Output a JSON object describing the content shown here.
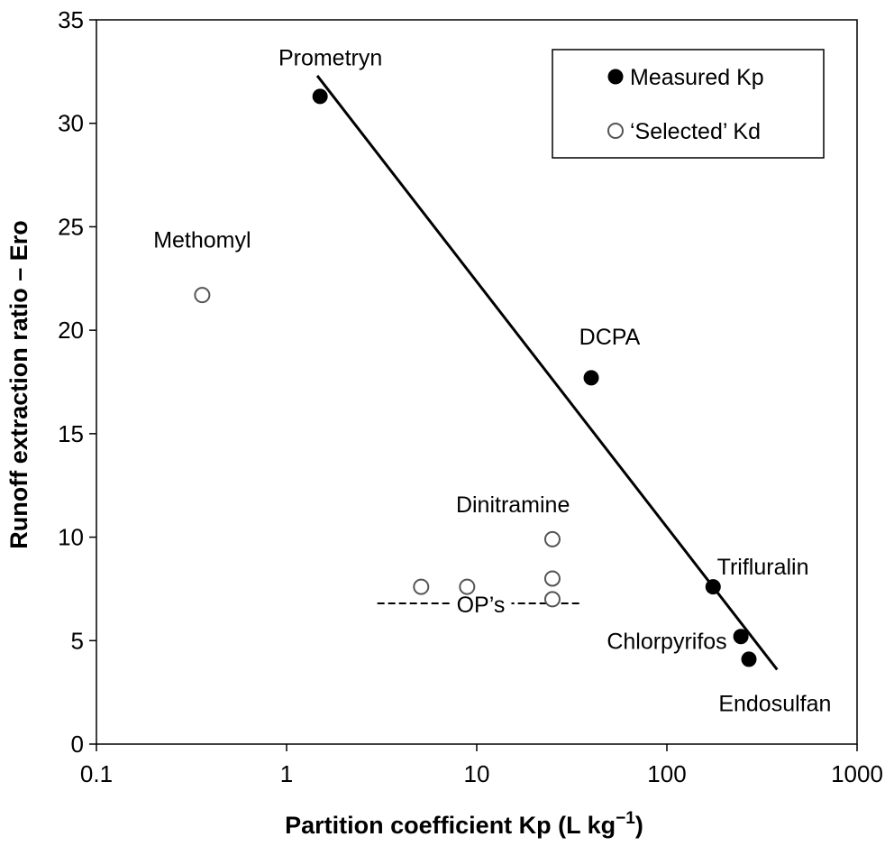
{
  "chart_data": {
    "type": "scatter",
    "title": "",
    "xlabel": "Partition coefficient Kp (L kg",
    "xlabel_sup": "−1",
    "xlabel_close": ")",
    "ylabel": "Runoff extraction ratio – Ero",
    "x_scale": "log",
    "xlim": [
      0.1,
      1000
    ],
    "ylim": [
      0,
      35
    ],
    "x_ticks": [
      0.1,
      1,
      10,
      100,
      1000
    ],
    "x_tick_labels": [
      "0.1",
      "1",
      "10",
      "100",
      "1000"
    ],
    "y_ticks": [
      0,
      5,
      10,
      15,
      20,
      25,
      30,
      35
    ],
    "y_tick_labels": [
      "0",
      "5",
      "10",
      "15",
      "20",
      "25",
      "30",
      "35"
    ],
    "grid": false,
    "legend_position": "top-right",
    "series": [
      {
        "name": "Measured Kp",
        "marker": "filled-circle",
        "color": "#000000",
        "points": [
          {
            "x": 1.5,
            "y": 31.3
          },
          {
            "x": 40,
            "y": 17.7
          },
          {
            "x": 175,
            "y": 7.6
          },
          {
            "x": 245,
            "y": 5.2
          },
          {
            "x": 270,
            "y": 4.1
          }
        ]
      },
      {
        "name": "‘Selected’ Kd",
        "marker": "open-circle",
        "color": "#555555",
        "points": [
          {
            "x": 0.36,
            "y": 21.7
          },
          {
            "x": 5.1,
            "y": 7.6
          },
          {
            "x": 8.9,
            "y": 7.6
          },
          {
            "x": 25,
            "y": 9.9
          },
          {
            "x": 25,
            "y": 8.0
          },
          {
            "x": 25,
            "y": 7.0
          }
        ]
      }
    ],
    "trendline": {
      "x1": 1.45,
      "y1": 32.3,
      "x2": 380,
      "y2": 3.6
    },
    "annotations": [
      {
        "text": "Prometryn",
        "x": 1.7,
        "y": 32.8
      },
      {
        "text": "Methomyl",
        "x": 0.36,
        "y": 24.0
      },
      {
        "text": "DCPA",
        "x": 50,
        "y": 19.3
      },
      {
        "text": "Dinitramine",
        "x": 15.5,
        "y": 11.2
      },
      {
        "text": "Trifluralin",
        "x": 320,
        "y": 8.2
      },
      {
        "text": "Chlorpyrifos",
        "x": 100,
        "y": 4.6
      },
      {
        "text": "Endosulfan",
        "x": 370,
        "y": 1.6
      }
    ],
    "op_label": {
      "text": "OP’s",
      "x1": 3,
      "x2": 35,
      "y": 6.8,
      "label_x": 10.5
    }
  }
}
